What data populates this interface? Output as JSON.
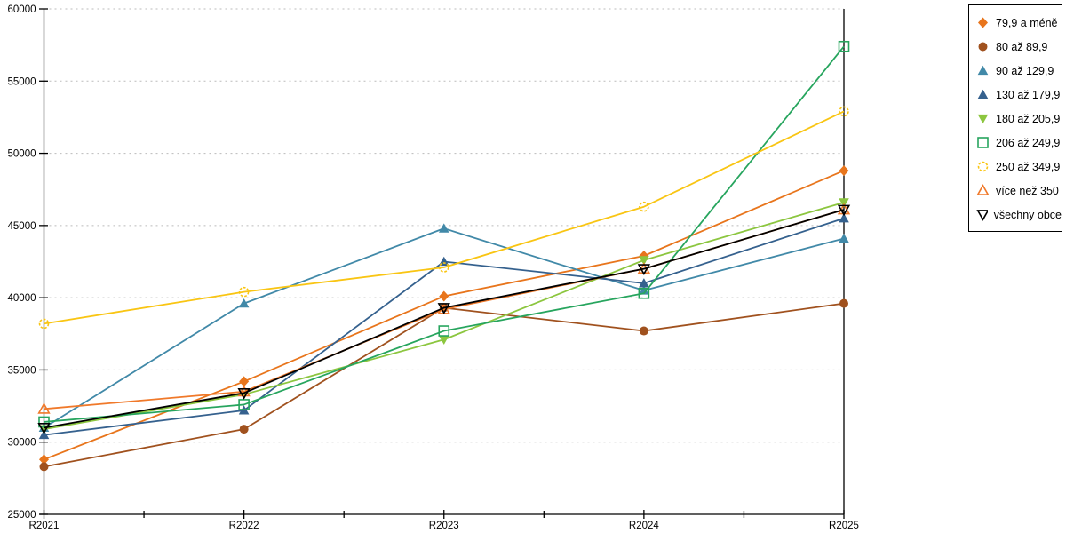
{
  "chart_data": {
    "type": "line",
    "title": "",
    "xlabel": "",
    "ylabel": "",
    "categories": [
      "R2021",
      "R2022",
      "R2023",
      "R2024",
      "R2025"
    ],
    "y_axis": {
      "min": 25000,
      "max": 60000,
      "step": 5000,
      "tick_labels": [
        "25000",
        "30000",
        "35000",
        "40000",
        "45000",
        "50000",
        "55000",
        "60000"
      ]
    },
    "grid": "dashed-horizontal",
    "legend_position": "top-right-outside",
    "series": [
      {
        "name": "79,9 a méně",
        "color": "#E8751C",
        "marker": "diamond-filled",
        "icon": "diamond-icon",
        "values": [
          28800,
          34200,
          40100,
          42900,
          48800
        ]
      },
      {
        "name": "80 až 89,9",
        "color": "#A0511E",
        "marker": "circle-filled",
        "icon": "filled-circle-icon",
        "values": [
          28300,
          30900,
          39300,
          37700,
          39600
        ]
      },
      {
        "name": "90 až 129,9",
        "color": "#4189A8",
        "marker": "triangle-up-filled",
        "icon": "filled-triangle-up-icon",
        "values": [
          31000,
          39600,
          44800,
          40500,
          44100
        ]
      },
      {
        "name": "130 až 179,9",
        "color": "#35618E",
        "marker": "triangle-up-filled",
        "icon": "filled-triangle-up-icon",
        "values": [
          30500,
          32200,
          42500,
          41000,
          45500
        ]
      },
      {
        "name": "180 až 205,9",
        "color": "#8CC63F",
        "marker": "triangle-down-filled",
        "icon": "filled-triangle-down-icon",
        "values": [
          30900,
          33300,
          37100,
          42600,
          46600
        ]
      },
      {
        "name": "206 až 249,9",
        "color": "#27A55E",
        "marker": "square-open",
        "icon": "open-square-icon",
        "values": [
          31400,
          32600,
          37700,
          40300,
          57400
        ]
      },
      {
        "name": "250 až 349,9",
        "color": "#F9C513",
        "marker": "circle-open-dashed",
        "icon": "open-circle-icon",
        "values": [
          38200,
          40400,
          42100,
          46300,
          52900
        ]
      },
      {
        "name": "více než 350",
        "color": "#F0792A",
        "marker": "triangle-up-open",
        "icon": "open-triangle-up-icon",
        "values": [
          32300,
          33500,
          39200,
          42000,
          46100
        ]
      },
      {
        "name": "všechny obce",
        "color": "#000000",
        "marker": "triangle-down-open",
        "icon": "open-triangle-down-icon",
        "values": [
          31000,
          33400,
          39300,
          42000,
          46100
        ]
      }
    ],
    "colors": {
      "axis": "#000000",
      "gridline": "#bbbbbb",
      "background": "#ffffff"
    }
  }
}
